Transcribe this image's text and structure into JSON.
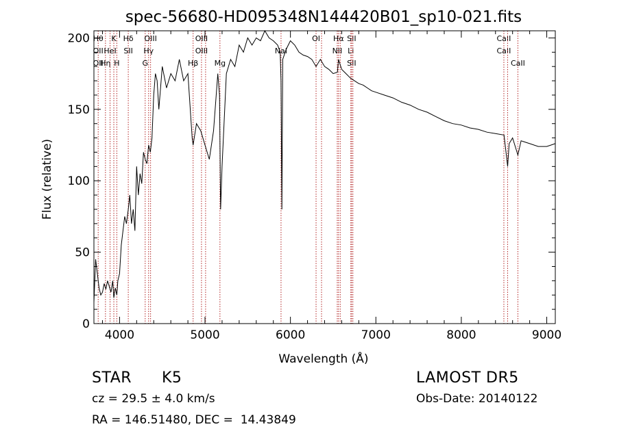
{
  "chart_data": {
    "type": "line",
    "title": "spec-56680-HD095348N144420B01_sp10-021.fits",
    "xlabel": "Wavelength (Å)",
    "ylabel": "Flux (relative)",
    "xlim": [
      3700,
      9100
    ],
    "ylim": [
      0,
      205
    ],
    "x_ticks": [
      4000,
      5000,
      6000,
      7000,
      8000,
      9000
    ],
    "y_ticks": [
      0,
      50,
      100,
      150,
      200
    ],
    "grid": false,
    "line_color": "#000000",
    "marker_color": "#b22222",
    "series": [
      {
        "x": [
          3700,
          3720,
          3740,
          3760,
          3780,
          3800,
          3820,
          3840,
          3860,
          3880,
          3900,
          3920,
          3933,
          3950,
          3968,
          3980,
          4000,
          4020,
          4040,
          4060,
          4080,
          4102,
          4120,
          4140,
          4160,
          4180,
          4200,
          4220,
          4240,
          4260,
          4280,
          4300,
          4320,
          4340,
          4360,
          4380,
          4400,
          4420,
          4440,
          4460,
          4480,
          4500,
          4550,
          4600,
          4650,
          4700,
          4750,
          4800,
          4850,
          4861,
          4900,
          4950,
          5000,
          5050,
          5100,
          5150,
          5170,
          5183,
          5200,
          5250,
          5300,
          5350,
          5400,
          5450,
          5500,
          5550,
          5600,
          5650,
          5700,
          5750,
          5800,
          5850,
          5880,
          5890,
          5900,
          5910,
          5950,
          6000,
          6050,
          6100,
          6150,
          6200,
          6250,
          6300,
          6350,
          6400,
          6450,
          6500,
          6550,
          6563,
          6600,
          6650,
          6700,
          6750,
          6800,
          6850,
          6900,
          6950,
          7000,
          7100,
          7200,
          7300,
          7400,
          7500,
          7600,
          7700,
          7800,
          7900,
          8000,
          8100,
          8200,
          8300,
          8400,
          8500,
          8542,
          8560,
          8600,
          8662,
          8700,
          8800,
          8900,
          9000,
          9050,
          9100
        ],
        "y": [
          15,
          45,
          35,
          25,
          20,
          22,
          28,
          24,
          30,
          26,
          22,
          30,
          18,
          25,
          20,
          30,
          35,
          55,
          65,
          75,
          70,
          80,
          90,
          70,
          80,
          65,
          110,
          90,
          105,
          98,
          120,
          115,
          112,
          125,
          120,
          130,
          160,
          175,
          170,
          150,
          165,
          180,
          165,
          175,
          170,
          185,
          170,
          175,
          130,
          125,
          140,
          135,
          125,
          115,
          135,
          175,
          160,
          80,
          110,
          175,
          185,
          180,
          195,
          190,
          200,
          195,
          200,
          198,
          205,
          200,
          198,
          195,
          190,
          170,
          80,
          185,
          192,
          198,
          195,
          190,
          188,
          187,
          185,
          180,
          185,
          180,
          178,
          175,
          176,
          185,
          178,
          175,
          172,
          170,
          168,
          167,
          165,
          163,
          162,
          160,
          158,
          155,
          153,
          150,
          148,
          145,
          142,
          140,
          139,
          137,
          136,
          134,
          133,
          132,
          110,
          126,
          130,
          118,
          128,
          126,
          124,
          124,
          125,
          126
        ]
      }
    ],
    "line_markers": [
      {
        "x": 3750,
        "labels": [
          "Hθ",
          "OII",
          "OII"
        ]
      },
      {
        "x": 3835,
        "labels": [
          "",
          "",
          "Hη"
        ]
      },
      {
        "x": 3889,
        "labels": [
          "",
          "HeI",
          ""
        ]
      },
      {
        "x": 3933,
        "labels": [
          "K",
          "",
          ""
        ]
      },
      {
        "x": 3968,
        "labels": [
          "",
          "",
          "H"
        ]
      },
      {
        "x": 4102,
        "labels": [
          "Hδ",
          "SII",
          ""
        ]
      },
      {
        "x": 4300,
        "labels": [
          "",
          "",
          "G"
        ]
      },
      {
        "x": 4340,
        "labels": [
          "",
          "Hγ",
          ""
        ]
      },
      {
        "x": 4363,
        "labels": [
          "OIII",
          "",
          ""
        ]
      },
      {
        "x": 4861,
        "labels": [
          "",
          "",
          "Hβ"
        ]
      },
      {
        "x": 4959,
        "labels": [
          "OIII",
          "OIII",
          ""
        ]
      },
      {
        "x": 5007,
        "labels": [
          "",
          "",
          ""
        ]
      },
      {
        "x": 5175,
        "labels": [
          "",
          "",
          "Mg"
        ]
      },
      {
        "x": 5890,
        "labels": [
          "",
          "NaI",
          ""
        ]
      },
      {
        "x": 6300,
        "labels": [
          "OI",
          "",
          ""
        ]
      },
      {
        "x": 6364,
        "labels": [
          "",
          "",
          ""
        ]
      },
      {
        "x": 6548,
        "labels": [
          "",
          "NII",
          ""
        ]
      },
      {
        "x": 6563,
        "labels": [
          "Hα",
          "",
          ""
        ]
      },
      {
        "x": 6583,
        "labels": [
          "",
          "",
          ""
        ]
      },
      {
        "x": 6707,
        "labels": [
          "",
          "Li",
          ""
        ]
      },
      {
        "x": 6716,
        "labels": [
          "SII",
          "",
          "SII"
        ]
      },
      {
        "x": 6731,
        "labels": [
          "",
          "",
          ""
        ]
      },
      {
        "x": 8498,
        "labels": [
          "CaII",
          "CaII",
          ""
        ]
      },
      {
        "x": 8542,
        "labels": [
          "",
          "",
          ""
        ]
      },
      {
        "x": 8662,
        "labels": [
          "",
          "",
          "CaII"
        ]
      }
    ]
  },
  "info": {
    "object_type": "STAR",
    "subclass": "K5",
    "survey": "LAMOST DR5",
    "redshift": "cz = 29.5 ± 4.0 km/s",
    "obs_date": "Obs-Date: 20140122",
    "coords": "RA = 146.51480, DEC =  14.43849"
  }
}
